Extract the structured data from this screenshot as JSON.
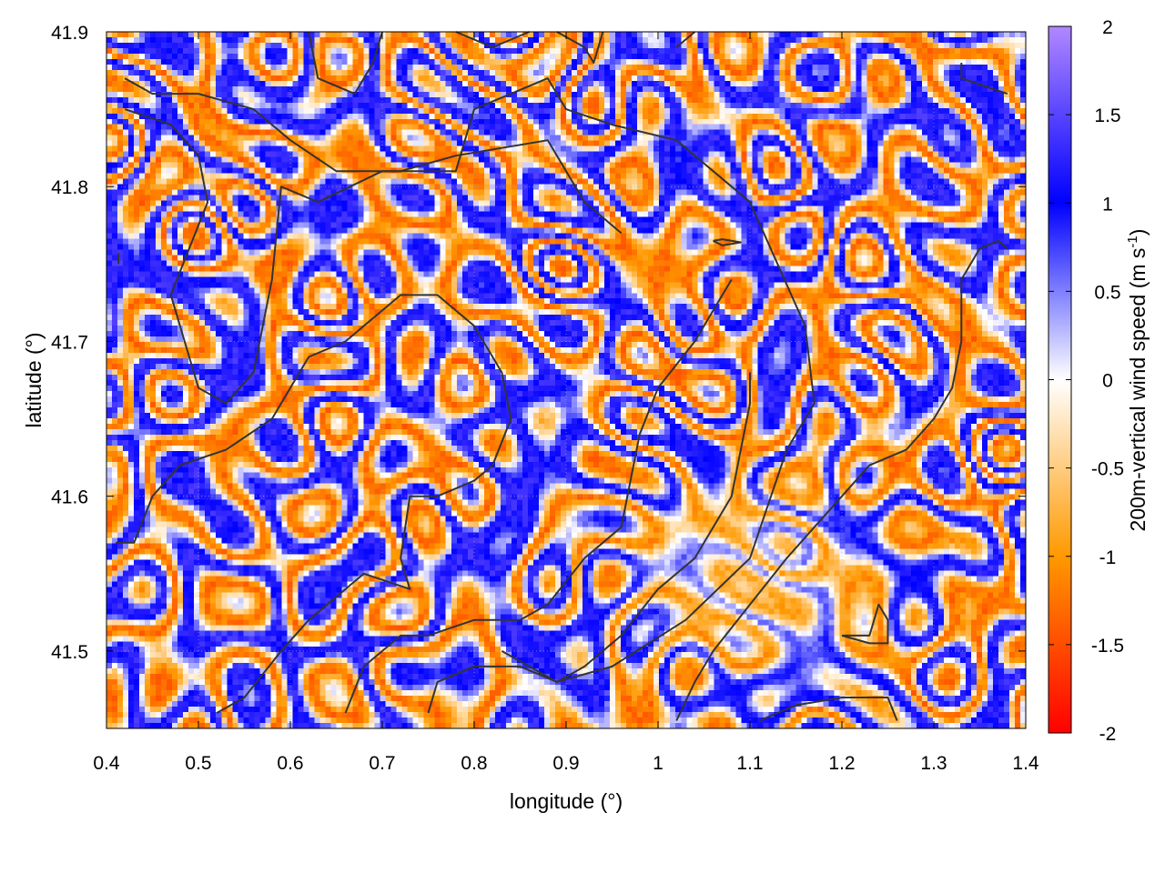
{
  "chart_data": {
    "type": "heatmap",
    "title": "",
    "xlabel": "longitude (°)",
    "ylabel": "latitude (°)",
    "colorbar_label_main": "200m-vertical wind speed (m s",
    "colorbar_label_sup": "-1",
    "colorbar_label_close": ")",
    "xlim": [
      0.4,
      1.4
    ],
    "ylim": [
      41.45,
      41.9
    ],
    "x_ticks": [
      0.4,
      0.5,
      0.6,
      0.7,
      0.8,
      0.9,
      1.0,
      1.1,
      1.2,
      1.3,
      1.4
    ],
    "x_tick_labels": [
      "0.4",
      "0.5",
      "0.6",
      "0.7",
      "0.8",
      "0.9",
      "1",
      "1.1",
      "1.2",
      "1.3",
      "1.4"
    ],
    "y_ticks": [
      41.5,
      41.6,
      41.7,
      41.8,
      41.9
    ],
    "y_tick_labels": [
      "41.5",
      "41.6",
      "41.7",
      "41.8",
      "41.9"
    ],
    "color_range": [
      -2,
      2
    ],
    "colorbar_ticks": [
      2,
      1.5,
      1,
      0.5,
      0,
      -0.5,
      -1,
      -1.5,
      -2
    ],
    "colorbar_tick_labels": [
      "2",
      "1.5",
      "1",
      "0.5",
      "0",
      "-0.5",
      "-1",
      "-1.5",
      "-2"
    ],
    "colormap": [
      {
        "value": -2,
        "color": "#ff0000"
      },
      {
        "value": -1,
        "color": "#ff9900"
      },
      {
        "value": 0,
        "color": "#ffffff"
      },
      {
        "value": 1,
        "color": "#0000ff"
      },
      {
        "value": 2,
        "color": "#b088ff"
      }
    ],
    "grid": true,
    "field_description_note_removed": true,
    "boundary_lines": [
      [
        [
          0.413,
          41.757
        ],
        [
          0.413,
          41.75
        ]
      ],
      [
        [
          0.42,
          41.87
        ],
        [
          0.45,
          41.86
        ],
        [
          0.5,
          41.86
        ],
        [
          0.56,
          41.85
        ],
        [
          0.6,
          41.83
        ],
        [
          0.65,
          41.81
        ],
        [
          0.72,
          41.81
        ],
        [
          0.78,
          41.82
        ],
        [
          0.88,
          41.83
        ],
        [
          0.92,
          41.79
        ],
        [
          0.96,
          41.77
        ]
      ],
      [
        [
          0.42,
          41.85
        ],
        [
          0.47,
          41.84
        ],
        [
          0.5,
          41.82
        ],
        [
          0.51,
          41.79
        ],
        [
          0.47,
          41.73
        ],
        [
          0.5,
          41.67
        ],
        [
          0.53,
          41.66
        ],
        [
          0.56,
          41.68
        ],
        [
          0.58,
          41.74
        ],
        [
          0.59,
          41.8
        ],
        [
          0.63,
          41.79
        ],
        [
          0.7,
          41.81
        ],
        [
          0.78,
          41.81
        ],
        [
          0.8,
          41.85
        ],
        [
          0.88,
          41.87
        ],
        [
          0.9,
          41.85
        ],
        [
          0.95,
          41.84
        ],
        [
          1.02,
          41.83
        ],
        [
          1.06,
          41.81
        ],
        [
          1.1,
          41.79
        ],
        [
          1.13,
          41.75
        ],
        [
          1.16,
          41.71
        ],
        [
          1.17,
          41.66
        ],
        [
          1.14,
          41.63
        ],
        [
          1.1,
          41.56
        ],
        [
          1.03,
          41.52
        ],
        [
          0.95,
          41.49
        ],
        [
          0.89,
          41.48
        ],
        [
          0.86,
          41.49
        ],
        [
          0.83,
          41.5
        ]
      ],
      [
        [
          0.62,
          41.9
        ],
        [
          0.63,
          41.87
        ],
        [
          0.67,
          41.86
        ],
        [
          0.69,
          41.88
        ],
        [
          0.7,
          41.9
        ]
      ],
      [
        [
          0.78,
          41.9
        ],
        [
          0.82,
          41.89
        ],
        [
          0.86,
          41.9
        ]
      ],
      [
        [
          0.89,
          41.9
        ],
        [
          0.92,
          41.89
        ],
        [
          0.93,
          41.88
        ],
        [
          0.94,
          41.9
        ]
      ],
      [
        [
          1.02,
          41.89
        ],
        [
          1.04,
          41.9
        ]
      ],
      [
        [
          1.33,
          41.88
        ],
        [
          1.33,
          41.87
        ],
        [
          1.38,
          41.86
        ]
      ],
      [
        [
          1.06,
          41.765
        ],
        [
          1.07,
          41.762
        ],
        [
          1.09,
          41.764
        ],
        [
          1.07,
          41.766
        ],
        [
          1.06,
          41.765
        ]
      ],
      [
        [
          0.41,
          41.57
        ],
        [
          0.43,
          41.57
        ],
        [
          0.45,
          41.6
        ],
        [
          0.48,
          41.62
        ],
        [
          0.53,
          41.63
        ],
        [
          0.58,
          41.65
        ],
        [
          0.62,
          41.69
        ],
        [
          0.66,
          41.7
        ],
        [
          0.72,
          41.73
        ],
        [
          0.76,
          41.73
        ],
        [
          0.78,
          41.72
        ],
        [
          0.8,
          41.71
        ],
        [
          0.83,
          41.68
        ],
        [
          0.84,
          41.65
        ],
        [
          0.82,
          41.62
        ],
        [
          0.8,
          41.61
        ],
        [
          0.76,
          41.6
        ],
        [
          0.73,
          41.6
        ],
        [
          0.72,
          41.56
        ],
        [
          0.73,
          41.54
        ],
        [
          0.68,
          41.55
        ],
        [
          0.62,
          41.52
        ],
        [
          0.59,
          41.5
        ],
        [
          0.55,
          41.47
        ],
        [
          0.52,
          41.46
        ]
      ],
      [
        [
          0.66,
          41.46
        ],
        [
          0.68,
          41.49
        ],
        [
          0.72,
          41.51
        ],
        [
          0.75,
          41.51
        ],
        [
          0.8,
          41.52
        ],
        [
          0.85,
          41.52
        ],
        [
          0.88,
          41.53
        ],
        [
          0.92,
          41.56
        ],
        [
          0.96,
          41.58
        ],
        [
          0.98,
          41.64
        ],
        [
          1.0,
          41.67
        ],
        [
          1.04,
          41.7
        ],
        [
          1.06,
          41.72
        ],
        [
          1.08,
          41.74
        ]
      ],
      [
        [
          0.75,
          41.46
        ],
        [
          0.76,
          41.48
        ],
        [
          0.8,
          41.49
        ],
        [
          0.85,
          41.49
        ],
        [
          0.89,
          41.48
        ],
        [
          0.92,
          41.49
        ],
        [
          0.96,
          41.51
        ],
        [
          1.0,
          41.54
        ],
        [
          1.04,
          41.56
        ],
        [
          1.08,
          41.6
        ],
        [
          1.1,
          41.66
        ],
        [
          1.1,
          41.68
        ]
      ],
      [
        [
          1.02,
          41.455
        ],
        [
          1.04,
          41.48
        ],
        [
          1.06,
          41.5
        ],
        [
          1.1,
          41.53
        ],
        [
          1.14,
          41.56
        ],
        [
          1.17,
          41.58
        ],
        [
          1.2,
          41.6
        ],
        [
          1.23,
          41.62
        ],
        [
          1.27,
          41.63
        ],
        [
          1.3,
          41.65
        ],
        [
          1.32,
          41.67
        ],
        [
          1.33,
          41.7
        ],
        [
          1.33,
          41.74
        ],
        [
          1.35,
          41.76
        ],
        [
          1.37,
          41.765
        ],
        [
          1.38,
          41.76
        ]
      ],
      [
        [
          1.2,
          41.51
        ],
        [
          1.23,
          41.505
        ],
        [
          1.25,
          41.505
        ],
        [
          1.25,
          41.52
        ],
        [
          1.24,
          41.53
        ],
        [
          1.23,
          41.51
        ],
        [
          1.2,
          41.51
        ]
      ],
      [
        [
          1.11,
          41.455
        ],
        [
          1.15,
          41.465
        ],
        [
          1.2,
          41.47
        ],
        [
          1.25,
          41.47
        ],
        [
          1.26,
          41.455
        ]
      ]
    ]
  }
}
